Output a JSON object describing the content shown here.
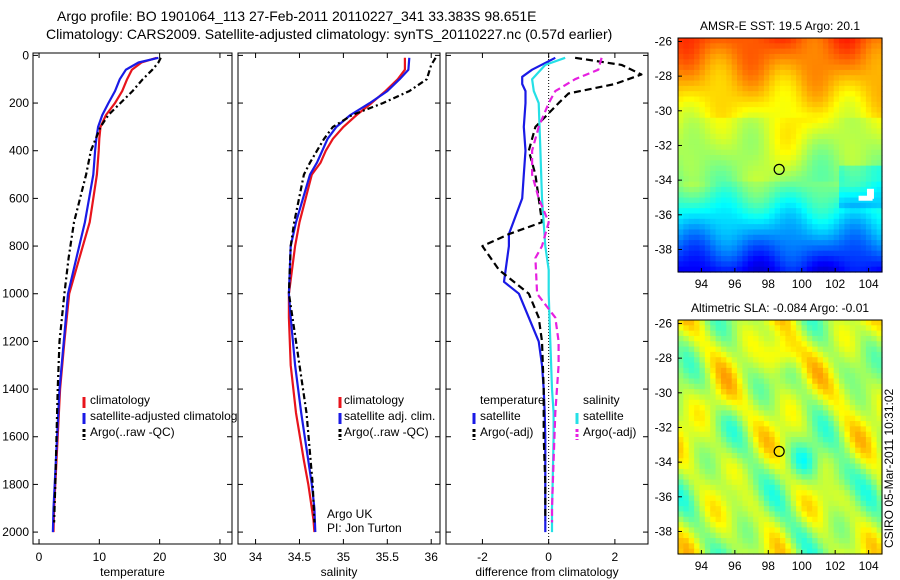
{
  "header": {
    "line1": "Argo profile: BO 1901064_113 27-Feb-2011 20110227_341 33.383S 98.651E",
    "line2": "Climatology: CARS2009. Satellite-adjusted climatology: synTS_20110227.nc (0.57d earlier)"
  },
  "side_label": "CSIRO 05-Mar-2011 10:31:02",
  "colors": {
    "red": "#e8141c",
    "blue": "#1a1ae6",
    "black": "#000000",
    "cyan": "#25e0e6",
    "magenta": "#e620e0"
  },
  "chart_data": [
    {
      "type": "line",
      "id": "temperature",
      "xlabel": "temperature",
      "xlim": [
        -1,
        32
      ],
      "xticks": [
        0,
        10,
        20,
        30
      ],
      "ylim": [
        2050,
        -10
      ],
      "yticks": [
        0,
        200,
        400,
        600,
        800,
        1000,
        1200,
        1400,
        1600,
        1800,
        2000
      ],
      "legend": [
        "climatology",
        "satellite-adjusted climatolog",
        "Argo(..raw -QC)"
      ],
      "series": [
        {
          "name": "climatology",
          "color": "red",
          "dash": "",
          "x": [
            19.5,
            17,
            15.4,
            14.6,
            13.8,
            12.6,
            11.1,
            10.2,
            10.0,
            9.9,
            9.6,
            8.4,
            6.7,
            5.0,
            4.2,
            3.5,
            3.1,
            2.9,
            2.7,
            2.5,
            2.4
          ],
          "y": [
            10,
            30,
            60,
            100,
            150,
            200,
            250,
            300,
            350,
            400,
            500,
            700,
            850,
            1000,
            1200,
            1400,
            1600,
            1700,
            1800,
            1900,
            2000
          ]
        },
        {
          "name": "satellite-adjusted climatolog",
          "color": "blue",
          "dash": "",
          "x": [
            19.8,
            16.5,
            14.4,
            13.4,
            12.6,
            11.5,
            10.5,
            9.8,
            9.5,
            9.3,
            9.0,
            7.6,
            6.2,
            4.8,
            4.1,
            3.4,
            3.0,
            2.8,
            2.6,
            2.4,
            2.3
          ],
          "y": [
            10,
            30,
            60,
            100,
            150,
            200,
            250,
            300,
            350,
            400,
            500,
            700,
            850,
            1000,
            1200,
            1400,
            1600,
            1700,
            1800,
            1900,
            2000
          ]
        },
        {
          "name": "Argo(..raw -QC)",
          "color": "black",
          "dash": "6,3,2,3",
          "x": [
            20.2,
            19.8,
            18.8,
            17.2,
            15.5,
            13.5,
            11.5,
            10.2,
            9.4,
            8.6,
            7.8,
            5.8,
            4.9,
            4.2,
            3.4,
            3.1,
            2.9,
            2.7,
            2.5
          ],
          "y": [
            10,
            30,
            60,
            100,
            150,
            200,
            250,
            300,
            350,
            400,
            500,
            700,
            850,
            1000,
            1200,
            1400,
            1600,
            1800,
            1960
          ]
        }
      ]
    },
    {
      "type": "line",
      "id": "salinity",
      "xlabel": "salinity",
      "xlim": [
        33.8,
        36.1
      ],
      "xticks": [
        34,
        34.5,
        35,
        35.5,
        36
      ],
      "ylim": [
        2050,
        -10
      ],
      "yticks": [],
      "legend": [
        "climatology",
        "satellite adj. clim.",
        "Argo(..raw -QC)"
      ],
      "annotation": [
        "Argo UK",
        "PI: Jon Turton"
      ],
      "series": [
        {
          "name": "climatology",
          "color": "red",
          "dash": "",
          "x": [
            35.7,
            35.7,
            35.62,
            35.48,
            35.32,
            35.15,
            35.0,
            34.88,
            34.8,
            34.74,
            34.64,
            34.5,
            34.45,
            34.38,
            34.38,
            34.4,
            34.46,
            34.55,
            34.6,
            34.64,
            34.66,
            34.67
          ],
          "y": [
            10,
            60,
            100,
            150,
            200,
            250,
            300,
            350,
            400,
            450,
            500,
            700,
            800,
            1000,
            1100,
            1300,
            1500,
            1700,
            1800,
            1900,
            1950,
            2000
          ]
        },
        {
          "name": "satellite adj. clim.",
          "color": "blue",
          "dash": "",
          "x": [
            35.75,
            35.74,
            35.64,
            35.5,
            35.3,
            35.08,
            34.92,
            34.82,
            34.76,
            34.7,
            34.62,
            34.46,
            34.4,
            34.38,
            34.4,
            34.45,
            34.52,
            34.6,
            34.64,
            34.67,
            34.68
          ],
          "y": [
            10,
            60,
            100,
            150,
            200,
            250,
            300,
            350,
            400,
            450,
            500,
            700,
            800,
            1000,
            1100,
            1300,
            1500,
            1700,
            1800,
            1900,
            2000
          ]
        },
        {
          "name": "Argo(..raw -QC)",
          "color": "black",
          "dash": "6,3,2,3",
          "x": [
            36.05,
            36.0,
            35.95,
            35.75,
            35.45,
            35.1,
            34.88,
            34.78,
            34.7,
            34.62,
            34.55,
            34.44,
            34.4,
            34.38,
            34.42,
            34.5,
            34.58,
            34.65,
            34.67
          ],
          "y": [
            10,
            40,
            100,
            150,
            200,
            250,
            300,
            350,
            400,
            450,
            500,
            700,
            800,
            1000,
            1100,
            1300,
            1500,
            1800,
            1960
          ]
        }
      ]
    },
    {
      "type": "line",
      "id": "difference",
      "xlabel": "difference from climatology",
      "xlim": [
        -3.1,
        3.0
      ],
      "xticks": [
        -2,
        0,
        2
      ],
      "ylim": [
        2050,
        -10
      ],
      "yticks": [],
      "legend_groups": [
        {
          "title": "temperature",
          "items": [
            "satellite",
            "Argo(-adj)"
          ]
        },
        {
          "title": "salinity",
          "items": [
            "satellite",
            "Argo(-adj)"
          ]
        }
      ],
      "series": [
        {
          "name": "temperature satellite",
          "color": "blue",
          "dash": "",
          "x": [
            0.2,
            -0.5,
            -0.8,
            -0.8,
            -0.7,
            -0.7,
            -0.75,
            -0.7,
            -0.75,
            -0.8,
            -1.2,
            -1.2,
            -1.35,
            -0.9,
            -0.6,
            -0.3,
            -0.2,
            -0.15,
            -0.12,
            -0.1,
            -0.1,
            -0.1
          ],
          "y": [
            10,
            60,
            90,
            120,
            150,
            200,
            300,
            400,
            500,
            600,
            750,
            800,
            950,
            1000,
            1100,
            1200,
            1300,
            1400,
            1500,
            1600,
            1800,
            2000
          ]
        },
        {
          "name": "temperature Argo(-adj)",
          "color": "black",
          "dash": "7,4",
          "x": [
            0.8,
            2.2,
            2.8,
            2.0,
            0.6,
            0.3,
            -0.4,
            -0.6,
            -0.4,
            -0.3,
            -0.2,
            -1.2,
            -2.0,
            -1.5,
            -0.6,
            -0.3,
            -0.2,
            -0.15,
            -0.15,
            -0.1,
            -0.1
          ],
          "y": [
            10,
            40,
            80,
            120,
            160,
            200,
            300,
            400,
            500,
            600,
            700,
            750,
            800,
            900,
            1000,
            1100,
            1200,
            1400,
            1600,
            1800,
            1950
          ]
        },
        {
          "name": "salinity satellite",
          "color": "cyan",
          "dash": "",
          "x": [
            0.5,
            -0.1,
            -0.5,
            -0.45,
            -0.3,
            -0.25,
            -0.2,
            -0.1,
            0.0,
            0.0,
            0.05,
            0.1,
            0.15,
            0.15,
            0.12,
            0.1,
            0.1,
            0.1
          ],
          "y": [
            10,
            40,
            100,
            150,
            200,
            400,
            600,
            800,
            900,
            1000,
            1200,
            1400,
            1500,
            1600,
            1800,
            1900,
            1950,
            2000
          ]
        },
        {
          "name": "salinity Argo(-adj)",
          "color": "magenta",
          "dash": "7,4",
          "x": [
            1.6,
            1.5,
            0.8,
            0.2,
            0.0,
            -0.3,
            -0.5,
            -0.5,
            -0.3,
            0.0,
            -0.2,
            -0.4,
            -0.35,
            0.2,
            0.3,
            0.3,
            0.2,
            0.15,
            0.1,
            0.1
          ],
          "y": [
            10,
            60,
            100,
            150,
            200,
            300,
            400,
            500,
            600,
            700,
            800,
            850,
            1000,
            1100,
            1200,
            1300,
            1500,
            1700,
            1900,
            1960
          ]
        }
      ]
    },
    {
      "type": "heatmap",
      "id": "sst",
      "title": "AMSR-E SST: 19.5 Argo: 20.1",
      "xlim": [
        92.6,
        104.8
      ],
      "ylim": [
        -39.3,
        -25.8
      ],
      "xticks": [
        94,
        96,
        98,
        100,
        102,
        104
      ],
      "xticklabels": [
        "94",
        "96",
        "98",
        "100",
        "102",
        "104"
      ],
      "yticks": [
        -26,
        -28,
        -30,
        -32,
        -34,
        -36,
        -38
      ],
      "yticklabels": [
        "-26",
        "-28",
        "-30",
        "-32",
        "-34",
        "-36",
        "-38"
      ],
      "marker": [
        98.65,
        -33.38
      ]
    },
    {
      "type": "heatmap",
      "id": "sla",
      "title": "Altimetric SLA: -0.084 Argo: -0.01",
      "xlim": [
        92.6,
        104.8
      ],
      "ylim": [
        -39.3,
        -25.8
      ],
      "xticks": [
        94,
        96,
        98,
        100,
        102,
        104
      ],
      "xticklabels": [
        "94",
        "96",
        "98",
        "100",
        "102",
        "104"
      ],
      "yticks": [
        -26,
        -28,
        -30,
        -32,
        -34,
        -36,
        -38
      ],
      "yticklabels": [
        "-26",
        "-28",
        "-30",
        "-32",
        "-34",
        "-36",
        "-38"
      ],
      "marker": [
        98.65,
        -33.38
      ]
    }
  ]
}
